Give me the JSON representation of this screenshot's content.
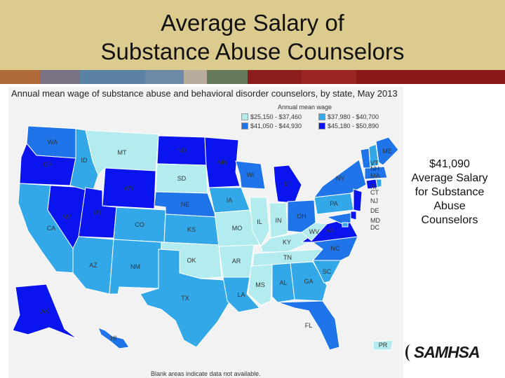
{
  "slide": {
    "title_line1": "Average Salary of",
    "title_line2": "Substance Abuse Counselors",
    "stripe_colors": [
      "#b06a3a",
      "#7c7286",
      "#5a82a3",
      "#6c8aa8",
      "#b8ad9c",
      "#647a58",
      "#8b1d1c",
      "#9b2621",
      "#8a1a1a"
    ]
  },
  "map": {
    "title": "Annual mean wage of substance abuse and behavioral disorder counselors, by state, May 2013",
    "legend_title": "Annual mean wage",
    "legend": [
      {
        "label": "$25,150 - $37,460",
        "color": "#b2ecee"
      },
      {
        "label": "$37,980 - $40,700",
        "color": "#33a8e8"
      },
      {
        "label": "$41,050 - $44,930",
        "color": "#1e74e8"
      },
      {
        "label": "$45,180 - $50,890",
        "color": "#0a14ee"
      }
    ],
    "footnote": "Blank areas indicate data not available.",
    "colors": {
      "c1": "#b2ecee",
      "c2": "#33a8e8",
      "c3": "#1e74e8",
      "c4": "#0a14ee"
    },
    "states": [
      {
        "code": "WA",
        "tier": "c3"
      },
      {
        "code": "OR",
        "tier": "c4"
      },
      {
        "code": "CA",
        "tier": "c2"
      },
      {
        "code": "NV",
        "tier": "c4"
      },
      {
        "code": "ID",
        "tier": "c2"
      },
      {
        "code": "MT",
        "tier": "c1"
      },
      {
        "code": "WY",
        "tier": "c4"
      },
      {
        "code": "UT",
        "tier": "c4"
      },
      {
        "code": "AZ",
        "tier": "c2"
      },
      {
        "code": "CO",
        "tier": "c2"
      },
      {
        "code": "NM",
        "tier": "c2"
      },
      {
        "code": "ND",
        "tier": "c4"
      },
      {
        "code": "SD",
        "tier": "c1"
      },
      {
        "code": "NE",
        "tier": "c3"
      },
      {
        "code": "KS",
        "tier": "c2"
      },
      {
        "code": "OK",
        "tier": "c1"
      },
      {
        "code": "TX",
        "tier": "c2"
      },
      {
        "code": "MN",
        "tier": "c4"
      },
      {
        "code": "IA",
        "tier": "c2"
      },
      {
        "code": "MO",
        "tier": "c1"
      },
      {
        "code": "AR",
        "tier": "c1"
      },
      {
        "code": "LA",
        "tier": "c2"
      },
      {
        "code": "WI",
        "tier": "c3"
      },
      {
        "code": "MI",
        "tier": "c4"
      },
      {
        "code": "IL",
        "tier": "c1"
      },
      {
        "code": "IN",
        "tier": "c1"
      },
      {
        "code": "OH",
        "tier": "c3"
      },
      {
        "code": "KY",
        "tier": "c1"
      },
      {
        "code": "TN",
        "tier": "c1"
      },
      {
        "code": "MS",
        "tier": "c1"
      },
      {
        "code": "AL",
        "tier": "c2"
      },
      {
        "code": "GA",
        "tier": "c2"
      },
      {
        "code": "FL",
        "tier": "c3"
      },
      {
        "code": "SC",
        "tier": "c2"
      },
      {
        "code": "NC",
        "tier": "c3"
      },
      {
        "code": "VA",
        "tier": "c4"
      },
      {
        "code": "WV",
        "tier": "c1"
      },
      {
        "code": "PA",
        "tier": "c2"
      },
      {
        "code": "NY",
        "tier": "c3"
      },
      {
        "code": "VT",
        "tier": "c3"
      },
      {
        "code": "NH",
        "tier": "c2"
      },
      {
        "code": "ME",
        "tier": "c3"
      },
      {
        "code": "MA",
        "tier": "c3"
      },
      {
        "code": "CT",
        "tier": "c4"
      },
      {
        "code": "RI",
        "tier": "c2"
      },
      {
        "code": "NJ",
        "tier": "c4"
      },
      {
        "code": "DE",
        "tier": "c4"
      },
      {
        "code": "MD",
        "tier": "c3"
      },
      {
        "code": "DC",
        "tier": "c2"
      },
      {
        "code": "AK",
        "tier": "c4"
      },
      {
        "code": "HI",
        "tier": "c3"
      },
      {
        "code": "PR",
        "tier": "c1"
      }
    ],
    "extra_labels": {
      "DE": "DE",
      "MD": "MD",
      "DC": "DC",
      "NJ": "NJ",
      "CT": "CT",
      "RI": "RI",
      "MA": "MA",
      "NH": "NH",
      "VT": "VT"
    }
  },
  "side_text": {
    "line1": "$41,090",
    "line2": "Average Salary",
    "line3": "for Substance",
    "line4": "Abuse",
    "line5": "Counselors"
  },
  "logo": {
    "name": "SAMHSA"
  }
}
